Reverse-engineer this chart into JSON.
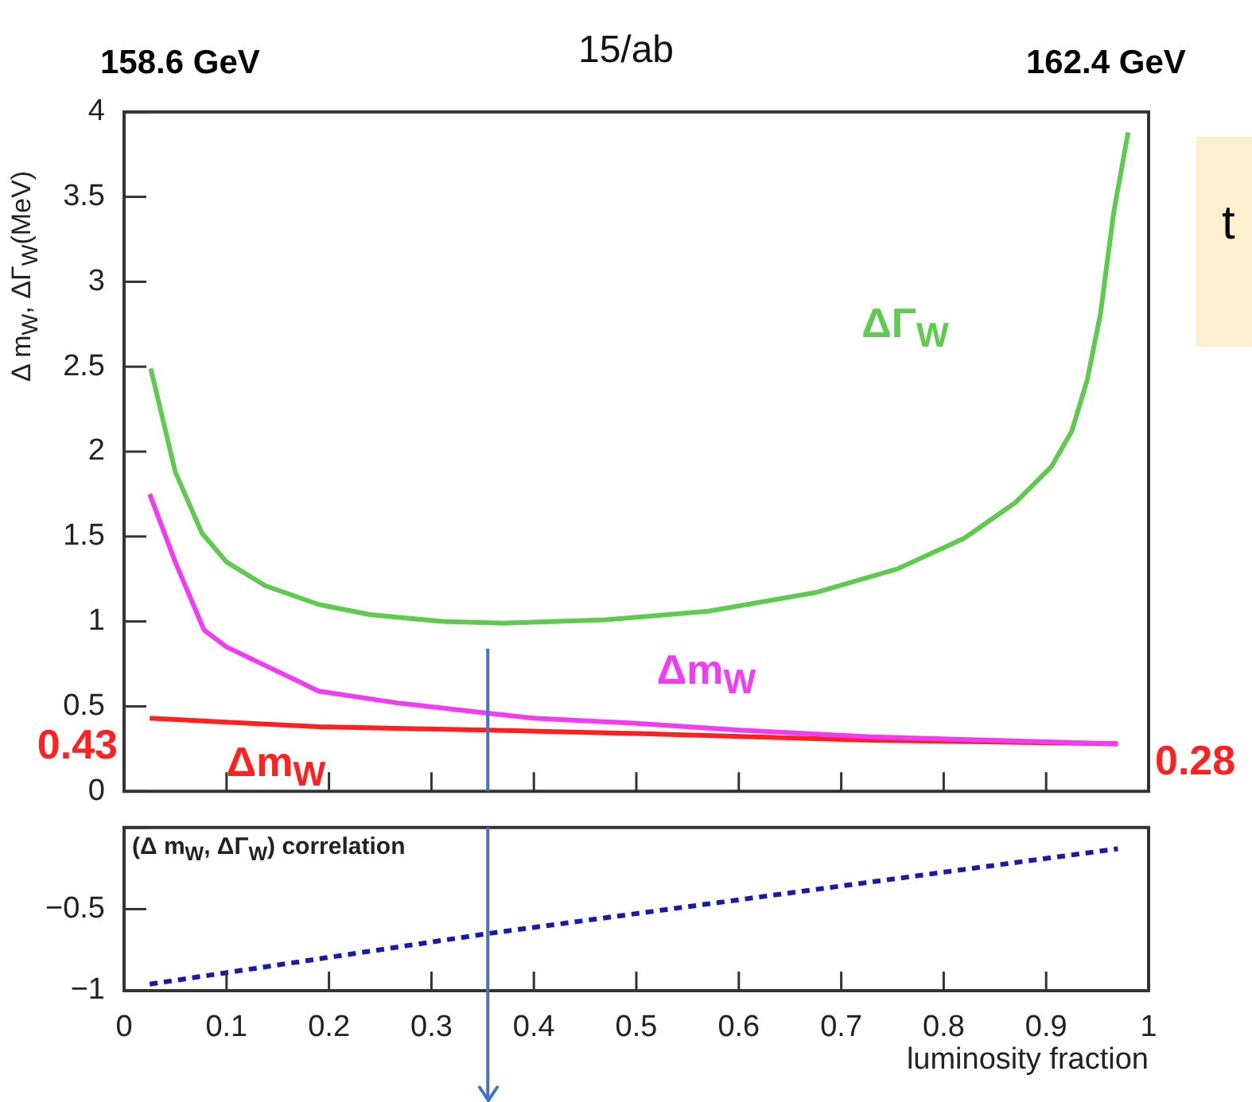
{
  "chart_data": [
    {
      "type": "line",
      "title": "15/ab",
      "ylabel": "Δ m$_{W}$, ΔΓ$_{W}$(MeV)",
      "annotations": [
        "158.6 GeV",
        "162.4 GeV",
        "t"
      ],
      "series": [
        {
          "name": "ΔΓ$_{W}$",
          "color": "#5ecb4f",
          "x": [
            0.026,
            0.05,
            0.076,
            0.1,
            0.138,
            0.19,
            0.24,
            0.31,
            0.37,
            0.47,
            0.57,
            0.675,
            0.755,
            0.82,
            0.87,
            0.905,
            0.925,
            0.94,
            0.953,
            0.966,
            0.98
          ],
          "values": [
            2.49,
            1.88,
            1.52,
            1.35,
            1.21,
            1.1,
            1.04,
            1.0,
            0.99,
            1.01,
            1.06,
            1.17,
            1.31,
            1.49,
            1.7,
            1.91,
            2.12,
            2.42,
            2.81,
            3.41,
            3.88
          ]
        },
        {
          "name": "Δm$_{W}$",
          "color": "#f23cf2",
          "x": [
            0.025,
            0.05,
            0.078,
            0.1,
            0.138,
            0.19,
            0.267,
            0.355,
            0.4,
            0.5,
            0.6,
            0.73,
            0.97
          ],
          "values": [
            1.75,
            1.35,
            0.95,
            0.85,
            0.74,
            0.59,
            0.52,
            0.46,
            0.43,
            0.4,
            0.36,
            0.32,
            0.28
          ]
        },
        {
          "name": "Δm$_{W}$",
          "color": "#ff2020",
          "x": [
            0.025,
            0.19,
            0.355,
            0.5,
            0.73,
            0.97
          ],
          "values": [
            0.43,
            0.38,
            0.36,
            0.34,
            0.3,
            0.28
          ],
          "value_labels": [
            "0.43",
            null,
            null,
            null,
            null,
            "0.28"
          ]
        }
      ],
      "xlim": [
        0,
        1
      ],
      "xticks": [
        {
          "value": 0,
          "label": null
        },
        {
          "value": 0.1,
          "label": null
        },
        {
          "value": 0.2,
          "label": null
        },
        {
          "value": 0.3,
          "label": null
        },
        {
          "value": 0.4,
          "label": null
        },
        {
          "value": 0.5,
          "label": null
        },
        {
          "value": 0.6,
          "label": null
        },
        {
          "value": 0.7,
          "label": null
        },
        {
          "value": 0.8,
          "label": null
        },
        {
          "value": 0.9,
          "label": null
        },
        {
          "value": 1,
          "label": null
        }
      ],
      "ylim": [
        0,
        4
      ],
      "yticks": [
        0,
        0.5,
        1,
        1.5,
        2,
        2.5,
        3,
        3.5,
        4
      ],
      "tick_labels": "y",
      "grid": false,
      "legend": false,
      "marker": "none",
      "ref_lines": [
        {
          "axis": "x",
          "value": 0.355,
          "color": "#4472c4"
        }
      ]
    },
    {
      "type": "line",
      "xlabel": "luminosity fraction",
      "annotations": [
        "(Δ m$_{W}$, ΔΓ$_{W}$) correlation"
      ],
      "series": [
        {
          "color": "#1a1aa8",
          "x": [
            0.025,
            0.355,
            0.97
          ],
          "values": [
            -0.96,
            -0.65,
            -0.13
          ]
        }
      ],
      "xlim": [
        0,
        1
      ],
      "xticks": [
        0,
        0.1,
        0.2,
        0.3,
        0.4,
        0.5,
        0.6,
        0.7,
        0.8,
        0.9,
        1
      ],
      "ylim": [
        -1,
        0
      ],
      "yticks": [
        {
          "value": -1,
          "label": "−1"
        },
        {
          "value": -0.5,
          "label": "−0.5"
        },
        {
          "value": 0,
          "label": null
        }
      ],
      "grid": false,
      "legend": false,
      "marker": "none",
      "line_style": "dashed",
      "ref_lines": [
        {
          "axis": "x",
          "value": 0.355,
          "color": "#4472c4"
        }
      ]
    }
  ]
}
